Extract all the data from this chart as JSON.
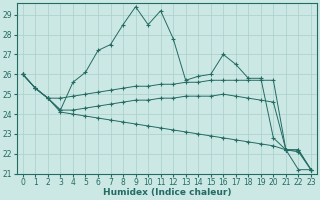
{
  "xlabel": "Humidex (Indice chaleur)",
  "xlim": [
    -0.5,
    23.5
  ],
  "ylim": [
    21,
    29.6
  ],
  "yticks": [
    21,
    22,
    23,
    24,
    25,
    26,
    27,
    28,
    29
  ],
  "xticks": [
    0,
    1,
    2,
    3,
    4,
    5,
    6,
    7,
    8,
    9,
    10,
    11,
    12,
    13,
    14,
    15,
    16,
    17,
    18,
    19,
    20,
    21,
    22,
    23
  ],
  "background_color": "#cce8e4",
  "grid_color": "#aacfcb",
  "line_color": "#236b63",
  "lines": [
    {
      "x": [
        0,
        1,
        2,
        3,
        4,
        5,
        6,
        7,
        8,
        9,
        10,
        11,
        12,
        13,
        14,
        15,
        16,
        17,
        18,
        19,
        20,
        21,
        22,
        23
      ],
      "y": [
        26.0,
        25.3,
        24.8,
        24.2,
        25.6,
        26.1,
        27.2,
        27.5,
        28.5,
        29.4,
        28.5,
        29.2,
        27.8,
        25.7,
        25.9,
        26.0,
        27.0,
        26.5,
        25.8,
        25.8,
        22.8,
        22.2,
        21.2,
        21.2
      ],
      "marker": "+"
    },
    {
      "x": [
        0,
        1,
        2,
        3,
        4,
        5,
        6,
        7,
        8,
        9,
        10,
        11,
        12,
        13,
        14,
        15,
        16,
        17,
        18,
        19,
        20,
        21,
        22,
        23
      ],
      "y": [
        26.0,
        25.3,
        24.8,
        24.8,
        24.9,
        25.0,
        25.1,
        25.2,
        25.3,
        25.4,
        25.4,
        25.5,
        25.5,
        25.6,
        25.6,
        25.7,
        25.7,
        25.7,
        25.7,
        25.7,
        25.7,
        22.2,
        22.2,
        21.2
      ],
      "marker": "+"
    },
    {
      "x": [
        0,
        1,
        2,
        3,
        4,
        5,
        6,
        7,
        8,
        9,
        10,
        11,
        12,
        13,
        14,
        15,
        16,
        17,
        18,
        19,
        20,
        21,
        22,
        23
      ],
      "y": [
        26.0,
        25.3,
        24.8,
        24.2,
        24.2,
        24.3,
        24.4,
        24.5,
        24.6,
        24.7,
        24.7,
        24.8,
        24.8,
        24.9,
        24.9,
        24.9,
        25.0,
        24.9,
        24.8,
        24.7,
        24.6,
        22.2,
        22.2,
        21.2
      ],
      "marker": "+"
    },
    {
      "x": [
        0,
        1,
        2,
        3,
        4,
        5,
        6,
        7,
        8,
        9,
        10,
        11,
        12,
        13,
        14,
        15,
        16,
        17,
        18,
        19,
        20,
        21,
        22,
        23
      ],
      "y": [
        26.0,
        25.3,
        24.8,
        24.1,
        24.0,
        23.9,
        23.8,
        23.7,
        23.6,
        23.5,
        23.4,
        23.3,
        23.2,
        23.1,
        23.0,
        22.9,
        22.8,
        22.7,
        22.6,
        22.5,
        22.4,
        22.2,
        22.1,
        21.2
      ],
      "marker": "+"
    }
  ],
  "xlabel_fontsize": 6.5,
  "tick_fontsize": 5.5
}
